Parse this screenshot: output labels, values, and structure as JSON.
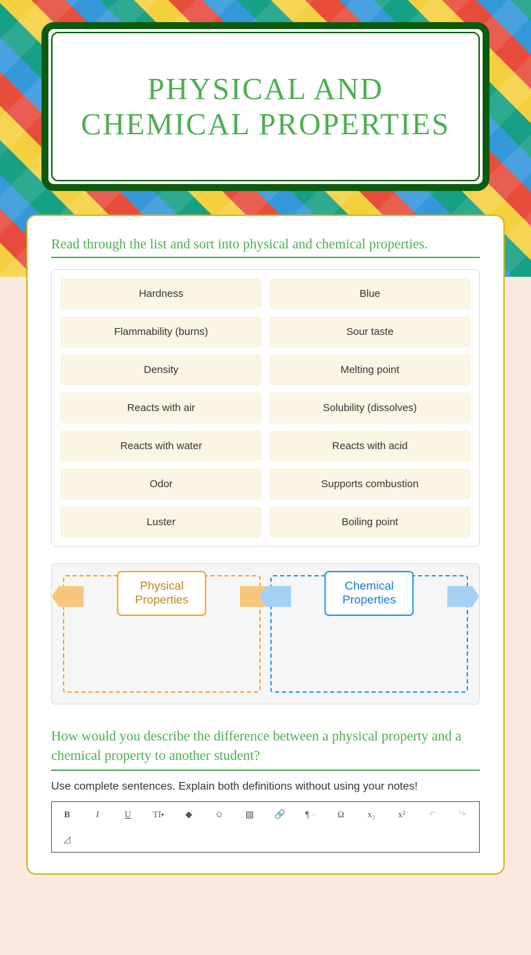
{
  "title": "PHYSICAL AND CHEMICAL PROPERTIES",
  "instruction": "Read through the list and sort into physical and chemical properties.",
  "items": [
    "Hardness",
    "Blue",
    "Flammability (burns)",
    "Sour taste",
    "Density",
    "Melting point",
    "Reacts with air",
    "Solubility (dissolves)",
    "Reacts with water",
    "Reacts with acid",
    "Odor",
    "Supports combustion",
    "Luster",
    "Boiling point"
  ],
  "drop_zones": {
    "physical": "Physical\nProperties",
    "chemical": "Chemical\nProperties"
  },
  "question": "How would you describe the difference between a physical property and a chemical property to another student?",
  "hint": "Use complete sentences. Explain both definitions without using your notes!",
  "toolbar": {
    "bold": "B",
    "italic": "I",
    "underline": "U",
    "font": "TI",
    "color": "◆",
    "emoji": "☺",
    "image": "▧",
    "link": "🔗",
    "para": "¶",
    "omega": "Ω",
    "sub": "x₂",
    "sup": "x²",
    "undo": "↶",
    "redo": "↷",
    "erase": "◿"
  },
  "colors": {
    "primary": "#4caf50",
    "item_bg": "#fbf5e3",
    "orange": "#f5a623",
    "blue": "#2196f3",
    "border_dark": "#0d5c0d",
    "yellow_border": "#d4b41a",
    "page_bg": "#fbe8de"
  }
}
